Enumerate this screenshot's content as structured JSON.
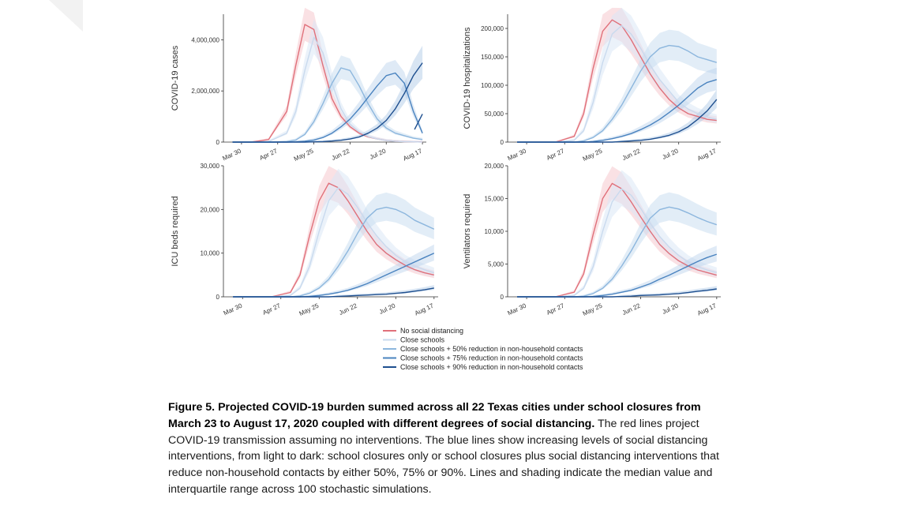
{
  "figure": {
    "caption_bold": "Figure 5. Projected COVID-19 burden summed across all 22 Texas cities under school closures from March 23 to August 17, 2020 coupled with different degrees of social distancing.",
    "caption_rest": " The red lines project COVID-19 transmission assuming no interventions. The blue lines show increasing levels of social distancing interventions, from light to dark: school closures only or school closures plus social distancing interventions that reduce non-household contacts by either 50%, 75% or 90%. Lines and shading indicate the median value and interquartile range across 100 stochastic simulations."
  },
  "legend": [
    {
      "label": "No social distancing",
      "color": "#e0707a"
    },
    {
      "label": "Close schools",
      "color": "#c9daee"
    },
    {
      "label": "Close schools + 50% reduction in non-household contacts",
      "color": "#8cb6dd"
    },
    {
      "label": "Close schools + 75% reduction in non-household contacts",
      "color": "#4a83bf"
    },
    {
      "label": "Close schools + 90% reduction in non-household contacts",
      "color": "#1e4f8f"
    }
  ],
  "chart_data": [
    {
      "type": "line",
      "ylabel": "COVID-19 cases",
      "x_ticks": [
        "Mar 30",
        "Apr 27",
        "May 25",
        "Jun 22",
        "Jul 20",
        "Aug 17"
      ],
      "y_ticks": [
        "0",
        "2,000,000",
        "4,000,000"
      ],
      "ylim": [
        0,
        5000000
      ],
      "x": [
        "Mar 23",
        "Apr 6",
        "Apr 20",
        "May 4",
        "May 11",
        "May 18",
        "May 25",
        "Jun 1",
        "Jun 8",
        "Jun 15",
        "Jun 22",
        "Jun 29",
        "Jul 6",
        "Jul 13",
        "Jul 20",
        "Jul 27",
        "Aug 3",
        "Aug 10",
        "Aug 17"
      ],
      "series": [
        {
          "name": "No social distancing",
          "values": [
            0,
            0,
            100000,
            1200000,
            3000000,
            4600000,
            4400000,
            3000000,
            1700000,
            1000000,
            600000,
            350000,
            200000,
            120000,
            60000,
            30000,
            15000,
            8000,
            4000
          ]
        },
        {
          "name": "Close schools",
          "values": [
            0,
            0,
            20000,
            350000,
            1200000,
            2800000,
            4100000,
            3500000,
            2300000,
            1300000,
            700000,
            400000,
            220000,
            120000,
            60000,
            30000,
            15000,
            8000,
            4000
          ]
        },
        {
          "name": "Close schools + 50% reduction in non-household contacts",
          "values": [
            0,
            0,
            0,
            20000,
            80000,
            300000,
            800000,
            1500000,
            2300000,
            2900000,
            2800000,
            2200000,
            1500000,
            900000,
            550000,
            350000,
            250000,
            150000,
            100000
          ]
        },
        {
          "name": "Close schools + 75% reduction in non-household contacts",
          "values": [
            0,
            0,
            0,
            0,
            10000,
            30000,
            80000,
            180000,
            350000,
            600000,
            900000,
            1300000,
            1750000,
            2200000,
            2600000,
            2700000,
            2300000,
            1200000,
            350000
          ]
        },
        {
          "name": "Close schools + 90% reduction in non-household contacts",
          "values": [
            0,
            0,
            0,
            0,
            0,
            0,
            10000,
            20000,
            40000,
            70000,
            120000,
            200000,
            350000,
            550000,
            850000,
            1300000,
            1900000,
            2600000,
            3100000
          ]
        }
      ],
      "extra_spike": {
        "x": "Aug 17",
        "value": 1100000
      }
    },
    {
      "type": "line",
      "ylabel": "COVID-19 hospitalizations",
      "x_ticks": [
        "Mar 30",
        "Apr 27",
        "May 25",
        "Jun 22",
        "Jul 20",
        "Aug 17"
      ],
      "y_ticks": [
        "0",
        "50,000",
        "100,000",
        "150,000",
        "200,000"
      ],
      "ylim": [
        0,
        225000
      ],
      "x": [
        "Mar 23",
        "Apr 6",
        "Apr 20",
        "May 4",
        "May 11",
        "May 18",
        "May 25",
        "Jun 1",
        "Jun 8",
        "Jun 15",
        "Jun 22",
        "Jun 29",
        "Jul 6",
        "Jul 13",
        "Jul 20",
        "Jul 27",
        "Aug 3",
        "Aug 10",
        "Aug 17"
      ],
      "series": [
        {
          "name": "No social distancing",
          "values": [
            0,
            0,
            0,
            10000,
            50000,
            130000,
            195000,
            215000,
            205000,
            180000,
            150000,
            120000,
            95000,
            75000,
            60000,
            50000,
            45000,
            40000,
            38000
          ]
        },
        {
          "name": "Close schools",
          "values": [
            0,
            0,
            0,
            3000,
            20000,
            70000,
            140000,
            190000,
            205000,
            190000,
            165000,
            135000,
            110000,
            90000,
            70000,
            58000,
            50000,
            44000,
            40000
          ]
        },
        {
          "name": "Close schools + 50% reduction in non-household contacts",
          "values": [
            0,
            0,
            0,
            0,
            2000,
            8000,
            20000,
            40000,
            65000,
            95000,
            125000,
            150000,
            165000,
            170000,
            168000,
            160000,
            150000,
            145000,
            140000
          ]
        },
        {
          "name": "Close schools + 75% reduction in non-household contacts",
          "values": [
            0,
            0,
            0,
            0,
            0,
            1000,
            3000,
            6000,
            10000,
            15000,
            22000,
            30000,
            40000,
            52000,
            65000,
            80000,
            95000,
            105000,
            110000
          ]
        },
        {
          "name": "Close schools + 90% reduction in non-household contacts",
          "values": [
            0,
            0,
            0,
            0,
            0,
            0,
            0,
            0,
            1000,
            2000,
            3000,
            5000,
            8000,
            12000,
            18000,
            27000,
            40000,
            55000,
            75000
          ]
        }
      ]
    },
    {
      "type": "line",
      "ylabel": "ICU beds required",
      "x_ticks": [
        "Mar 30",
        "Apr 27",
        "May 25",
        "Jun 22",
        "Jul 20",
        "Aug 17"
      ],
      "y_ticks": [
        "0",
        "10,000",
        "20,000",
        "30,000"
      ],
      "ylim": [
        0,
        30000
      ],
      "x": [
        "Mar 23",
        "Apr 6",
        "Apr 20",
        "May 4",
        "May 11",
        "May 18",
        "May 25",
        "Jun 1",
        "Jun 8",
        "Jun 15",
        "Jun 22",
        "Jun 29",
        "Jul 6",
        "Jul 13",
        "Jul 20",
        "Jul 27",
        "Aug 3",
        "Aug 10",
        "Aug 17"
      ],
      "series": [
        {
          "name": "No social distancing",
          "values": [
            0,
            0,
            0,
            1000,
            5000,
            14000,
            22000,
            26000,
            25000,
            22000,
            18500,
            15000,
            12000,
            10000,
            8500,
            7200,
            6200,
            5500,
            5000
          ]
        },
        {
          "name": "Close schools",
          "values": [
            0,
            0,
            0,
            300,
            2000,
            7000,
            15000,
            22000,
            25000,
            23500,
            20500,
            17000,
            14000,
            11500,
            9500,
            8000,
            7000,
            6200,
            5500
          ]
        },
        {
          "name": "Close schools + 50% reduction in non-household contacts",
          "values": [
            0,
            0,
            0,
            0,
            200,
            800,
            2000,
            4000,
            7000,
            10500,
            14500,
            18000,
            20000,
            20500,
            20000,
            19000,
            17500,
            16500,
            15500
          ]
        },
        {
          "name": "Close schools + 75% reduction in non-household contacts",
          "values": [
            0,
            0,
            0,
            0,
            0,
            100,
            300,
            600,
            1000,
            1500,
            2200,
            3000,
            4000,
            5000,
            6000,
            7000,
            8000,
            9000,
            10000
          ]
        },
        {
          "name": "Close schools + 90% reduction in non-household contacts",
          "values": [
            0,
            0,
            0,
            0,
            0,
            0,
            0,
            0,
            100,
            200,
            300,
            400,
            500,
            600,
            800,
            1000,
            1300,
            1600,
            2000
          ]
        }
      ]
    },
    {
      "type": "line",
      "ylabel": "Ventilators required",
      "x_ticks": [
        "Mar 30",
        "Apr 27",
        "May 25",
        "Jun 22",
        "Jul 20",
        "Aug 17"
      ],
      "y_ticks": [
        "0",
        "5,000",
        "10,000",
        "15,000",
        "20,000"
      ],
      "ylim": [
        0,
        20000
      ],
      "x": [
        "Mar 23",
        "Apr 6",
        "Apr 20",
        "May 4",
        "May 11",
        "May 18",
        "May 25",
        "Jun 1",
        "Jun 8",
        "Jun 15",
        "Jun 22",
        "Jun 29",
        "Jul 6",
        "Jul 13",
        "Jul 20",
        "Jul 27",
        "Aug 3",
        "Aug 10",
        "Aug 17"
      ],
      "series": [
        {
          "name": "No social distancing",
          "values": [
            0,
            0,
            0,
            700,
            3500,
            9500,
            15000,
            17300,
            16500,
            14500,
            12200,
            10000,
            8000,
            6600,
            5500,
            4700,
            4100,
            3700,
            3300
          ]
        },
        {
          "name": "Close schools",
          "values": [
            0,
            0,
            0,
            200,
            1300,
            4600,
            10000,
            14500,
            16500,
            15500,
            13500,
            11200,
            9200,
            7600,
            6300,
            5300,
            4600,
            4100,
            3700
          ]
        },
        {
          "name": "Close schools + 50% reduction in non-household contacts",
          "values": [
            0,
            0,
            0,
            0,
            100,
            500,
            1300,
            2700,
            4700,
            7000,
            9600,
            12000,
            13300,
            13700,
            13400,
            12800,
            12100,
            11500,
            11000
          ]
        },
        {
          "name": "Close schools + 75% reduction in non-household contacts",
          "values": [
            0,
            0,
            0,
            0,
            0,
            50,
            200,
            400,
            700,
            1000,
            1500,
            2000,
            2700,
            3300,
            4000,
            4700,
            5400,
            6000,
            6500
          ]
        },
        {
          "name": "Close schools + 90% reduction in non-household contacts",
          "values": [
            0,
            0,
            0,
            0,
            0,
            0,
            0,
            0,
            50,
            100,
            200,
            250,
            300,
            400,
            500,
            650,
            850,
            1000,
            1200
          ]
        }
      ]
    }
  ]
}
